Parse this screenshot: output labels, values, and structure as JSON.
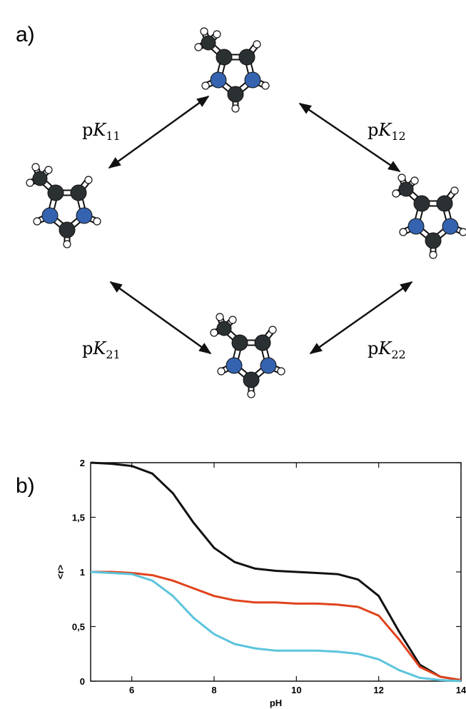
{
  "panels": {
    "a": {
      "label": "a)",
      "equilibria": [
        {
          "p": "p",
          "K": "K",
          "sub": "11"
        },
        {
          "p": "p",
          "K": "K",
          "sub": "12"
        },
        {
          "p": "p",
          "K": "K",
          "sub": "21"
        },
        {
          "p": "p",
          "K": "K",
          "sub": "22"
        }
      ]
    },
    "b": {
      "label": "b)"
    }
  },
  "chart_data": {
    "type": "line",
    "xlabel": "pH",
    "ylabel": "<r>",
    "x": [
      5,
      5.5,
      6,
      6.5,
      7,
      7.5,
      8,
      8.5,
      9,
      9.5,
      10,
      10.5,
      11,
      11.5,
      12,
      12.5,
      13,
      13.5,
      14
    ],
    "series": [
      {
        "color": "#111111",
        "values": [
          2,
          1.99,
          1.97,
          1.9,
          1.72,
          1.45,
          1.22,
          1.09,
          1.03,
          1.01,
          1.0,
          0.99,
          0.98,
          0.93,
          0.78,
          0.45,
          0.15,
          0.04,
          0.01
        ]
      },
      {
        "color": "#e0431c",
        "values": [
          1,
          1,
          0.99,
          0.97,
          0.92,
          0.85,
          0.78,
          0.74,
          0.72,
          0.72,
          0.71,
          0.71,
          0.7,
          0.68,
          0.6,
          0.38,
          0.13,
          0.04,
          0.01
        ]
      },
      {
        "color": "#5cc4dc",
        "values": [
          1,
          0.99,
          0.98,
          0.92,
          0.78,
          0.58,
          0.43,
          0.34,
          0.3,
          0.28,
          0.28,
          0.28,
          0.27,
          0.25,
          0.2,
          0.1,
          0.03,
          0.01,
          0
        ]
      }
    ],
    "xlim": [
      5,
      14
    ],
    "ylim": [
      0,
      2
    ],
    "xticks": [
      6,
      8,
      10,
      12,
      14
    ],
    "yticks": [
      0,
      {
        "value": 0.5,
        "label": "0,5"
      },
      1,
      {
        "value": 1.5,
        "label": "1,5"
      },
      2
    ]
  }
}
